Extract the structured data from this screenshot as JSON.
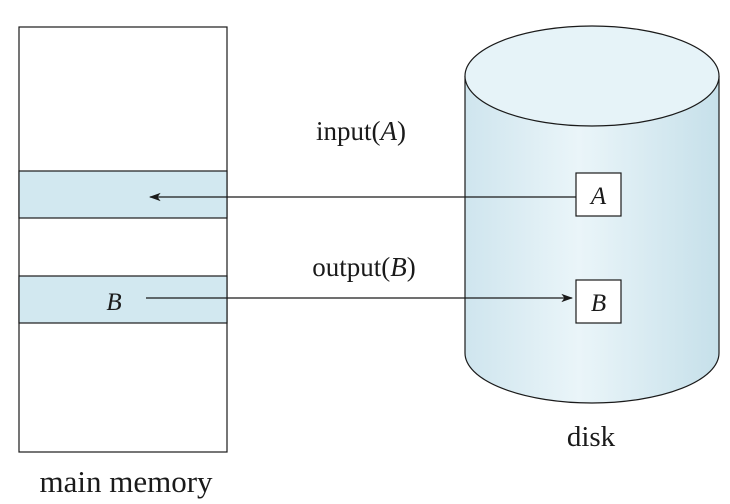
{
  "colors": {
    "block_fill": "#d2e8f0",
    "disk_fill": "#d7ebf2",
    "disk_top": "#e6f3f8",
    "stroke": "#1a1a1a"
  },
  "memory": {
    "label": "main memory",
    "block_b_label": "B"
  },
  "disk": {
    "label": "disk",
    "block_a_label": "A",
    "block_b_label": "B"
  },
  "operations": {
    "input": {
      "name": "input",
      "open": "(",
      "arg": "A",
      "close": ")"
    },
    "output": {
      "name": "output",
      "open": "(",
      "arg": "B",
      "close": ")"
    }
  }
}
